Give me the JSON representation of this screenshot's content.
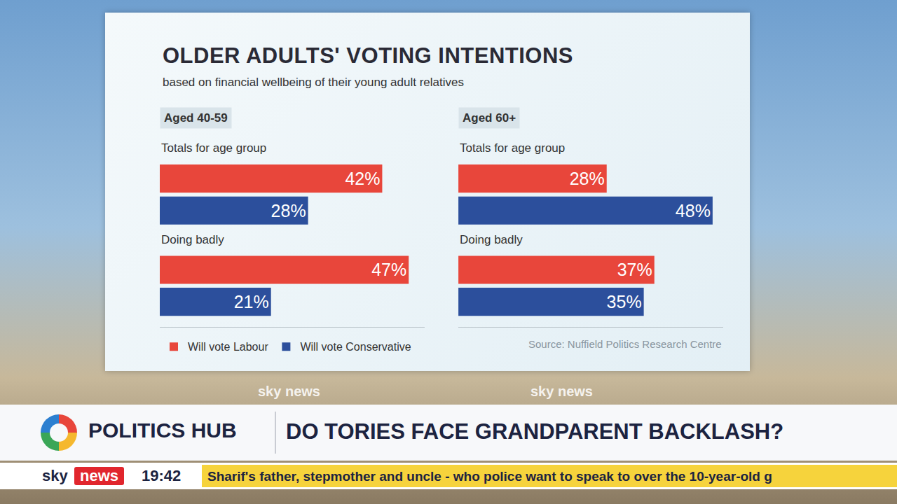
{
  "chart_data": {
    "title": "OLDER ADULTS' VOTING INTENTIONS",
    "subtitle": "based on financial wellbeing of their young adult relatives",
    "source": "Source: Nuffield Politics Research Centre",
    "legend": "bottom left",
    "panels": [
      {
        "type": "bar",
        "title": "Aged 40-59",
        "orientation": "horizontal",
        "data_labels": true,
        "tick_labels": false,
        "grid": false,
        "xlim": [
          0,
          50
        ],
        "categories": [
          "Totals for age group",
          "Doing badly"
        ],
        "series": [
          {
            "name": "Will vote Labour",
            "color": "#e8463b",
            "values": [
              42,
              47
            ],
            "value_labels": [
              "42%",
              "47%"
            ]
          },
          {
            "name": "Will vote Conservative",
            "color": "#2c4f9c",
            "values": [
              28,
              21
            ],
            "value_labels": [
              "28%",
              "21%"
            ]
          }
        ]
      },
      {
        "type": "bar",
        "title": "Aged 60+",
        "orientation": "horizontal",
        "data_labels": true,
        "tick_labels": false,
        "grid": false,
        "xlim": [
          0,
          50
        ],
        "categories": [
          "Totals for age group",
          "Doing badly"
        ],
        "series": [
          {
            "name": "Will vote Labour",
            "color": "#e8463b",
            "values": [
              28,
              37
            ],
            "value_labels": [
              "28%",
              "37%"
            ]
          },
          {
            "name": "Will vote Conservative",
            "color": "#2c4f9c",
            "values": [
              48,
              35
            ],
            "value_labels": [
              "48%",
              "35%"
            ]
          }
        ]
      }
    ]
  },
  "broadcast": {
    "programme": "POLITICS HUB",
    "headline": "DO TORIES FACE GRANDPARENT BACKLASH?",
    "channel": "sky news",
    "time": "19:42",
    "ticker": "Sharif's father, stepmother and uncle - who police want to speak to over the 10-year-old g"
  }
}
